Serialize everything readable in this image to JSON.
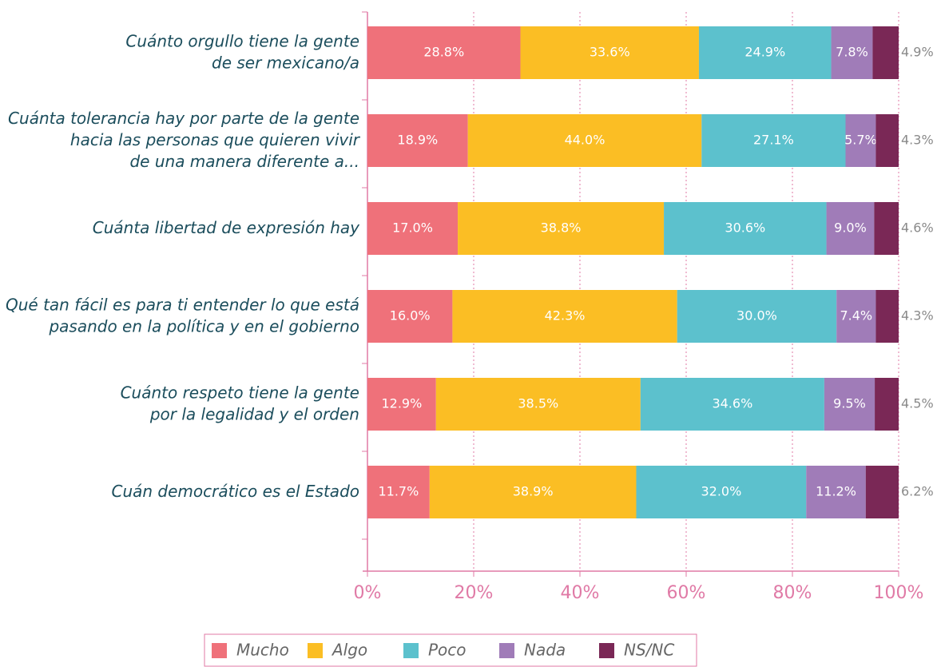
{
  "chart_data": {
    "type": "stacked_barh",
    "categories": [
      "Cuánto orgullo tiene la gente\nde ser mexicano/a",
      "Cuánta tolerancia hay por parte de la gente\nhacia las personas que quieren vivir\nde una manera diferente a...",
      "Cuánta libertad de expresión hay",
      "Qué tan fácil es para ti entender lo que está\npasando en la política y en el gobierno",
      "Cuánto respeto tiene la gente\npor la legalidad y el orden",
      "Cuán democrático es el Estado"
    ],
    "series": [
      {
        "name": "Mucho",
        "color": "#ef717a",
        "values": [
          28.8,
          18.9,
          17.0,
          16.0,
          12.9,
          11.7
        ],
        "value_labels": [
          "28.8%",
          "18.9%",
          "17.0%",
          "16.0%",
          "12.9%",
          "11.7%"
        ]
      },
      {
        "name": "Algo",
        "color": "#fbbe24",
        "values": [
          33.6,
          44.0,
          38.8,
          42.3,
          38.5,
          38.9
        ],
        "value_labels": [
          "33.6%",
          "44.0%",
          "38.8%",
          "42.3%",
          "38.5%",
          "38.9%"
        ]
      },
      {
        "name": "Poco",
        "color": "#5cc1cd",
        "values": [
          24.9,
          27.1,
          30.6,
          30.0,
          34.6,
          32.0
        ],
        "value_labels": [
          "24.9%",
          "27.1%",
          "30.6%",
          "30.0%",
          "34.6%",
          "32.0%"
        ]
      },
      {
        "name": "Nada",
        "color": "#a07cb8",
        "values": [
          7.8,
          5.7,
          9.0,
          7.4,
          9.5,
          11.2
        ],
        "value_labels": [
          "7.8%",
          "5.7%",
          "9.0%",
          "7.4%",
          "9.5%",
          "11.2%"
        ]
      },
      {
        "name": "NS/NC",
        "color": "#7a2856",
        "values": [
          4.9,
          4.3,
          4.6,
          4.3,
          4.5,
          6.2
        ],
        "value_labels": [
          "4.9%",
          "4.3%",
          "4.6%",
          "4.3%",
          "4.5%",
          "6.2%"
        ]
      }
    ],
    "xlim": [
      0,
      100
    ],
    "xticks": [
      {
        "value": 0,
        "label": "0%"
      },
      {
        "value": 20,
        "label": "20%"
      },
      {
        "value": 40,
        "label": "40%"
      },
      {
        "value": 60,
        "label": "60%"
      },
      {
        "value": 80,
        "label": "80%"
      },
      {
        "value": 100,
        "label": "100%"
      }
    ],
    "grid": true,
    "legend": "bottom"
  }
}
